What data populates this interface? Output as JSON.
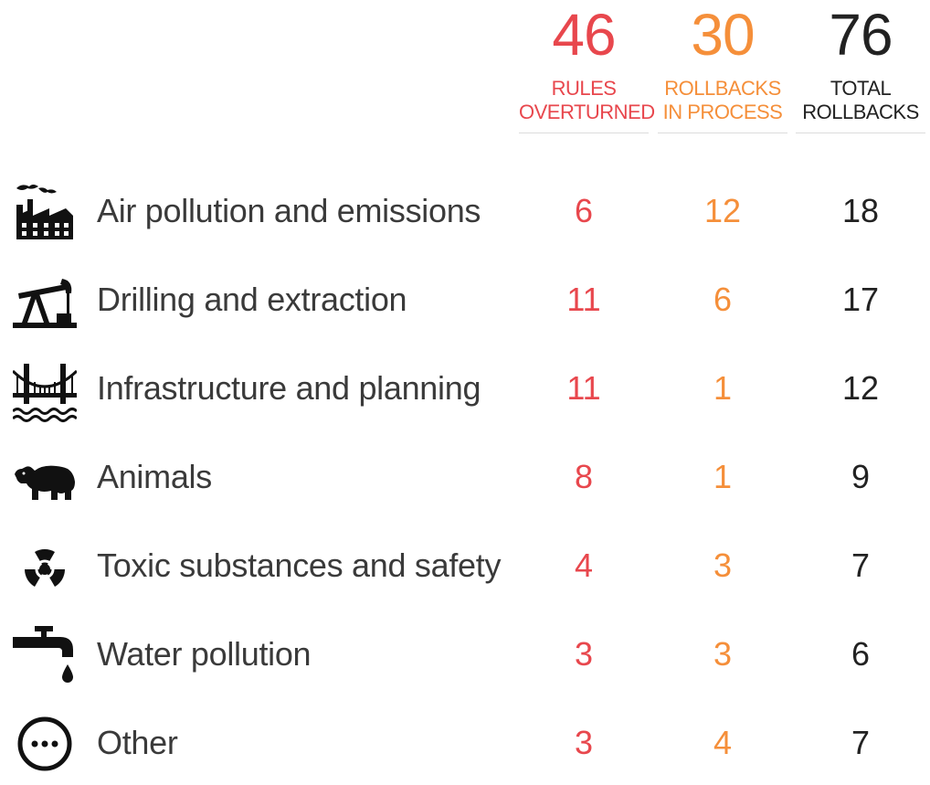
{
  "header": {
    "overturned": {
      "value": "46",
      "label_line1": "RULES",
      "label_line2": "OVERTURNED",
      "color": "#e8474d"
    },
    "in_process": {
      "value": "30",
      "label_line1": "ROLLBACKS",
      "label_line2": "IN PROCESS",
      "color": "#f58f3a"
    },
    "total": {
      "value": "76",
      "label_line1": "TOTAL",
      "label_line2": "ROLLBACKS",
      "color": "#222222"
    }
  },
  "chart_data": {
    "type": "table",
    "columns": [
      "RULES OVERTURNED",
      "ROLLBACKS IN PROCESS",
      "TOTAL ROLLBACKS"
    ],
    "rows": [
      {
        "category": "Air pollution and emissions",
        "icon": "factory-icon",
        "overturned": "6",
        "in_process": "12",
        "total": "18"
      },
      {
        "category": "Drilling and extraction",
        "icon": "oil-pump-icon",
        "overturned": "11",
        "in_process": "6",
        "total": "17"
      },
      {
        "category": "Infrastructure and planning",
        "icon": "bridge-icon",
        "overturned": "11",
        "in_process": "1",
        "total": "12"
      },
      {
        "category": "Animals",
        "icon": "bear-icon",
        "overturned": "8",
        "in_process": "1",
        "total": "9"
      },
      {
        "category": "Toxic substances and safety",
        "icon": "radiation-icon",
        "overturned": "4",
        "in_process": "3",
        "total": "7"
      },
      {
        "category": "Water pollution",
        "icon": "faucet-icon",
        "overturned": "3",
        "in_process": "3",
        "total": "6"
      },
      {
        "category": "Other",
        "icon": "ellipsis-circle-icon",
        "overturned": "3",
        "in_process": "4",
        "total": "7"
      }
    ]
  }
}
